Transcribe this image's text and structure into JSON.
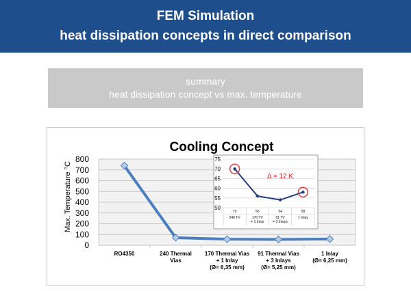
{
  "header": {
    "line1": "FEM Simulation",
    "line2": "heat dissipation concepts in direct comparison"
  },
  "summary": {
    "line1": "summary",
    "line2": "heat dissipation concept vs max. temperature"
  },
  "colors": {
    "header_bg": "#1f4e8c",
    "summary_bg": "#c9c9c9",
    "series_line": "#4a7ebf",
    "marker_fill": "#b8cce4",
    "inset_line": "#1f3a80",
    "delta_text": "#e02020",
    "highlight_circle": "#e04040"
  },
  "chart_data": [
    {
      "type": "line",
      "title": "Cooling Concept",
      "ylabel": "Max. Temperature  °C",
      "xlabel": "",
      "categories": [
        [
          "RO4350"
        ],
        [
          "240 Thermal",
          "Vias"
        ],
        [
          "170 Thermal Vias",
          "+ 1 Inlay",
          "(Ø= 6,35 mm)"
        ],
        [
          "91 Thermal Vias",
          "+ 3 Inlays",
          "(Ø= 5,25 mm)"
        ],
        [
          "1 Inlay",
          "(Ø= 6,25 mm)"
        ]
      ],
      "values": [
        740,
        70,
        56,
        54,
        58
      ],
      "ylim": [
        0,
        800
      ],
      "yticks": [
        0,
        100,
        200,
        300,
        400,
        500,
        600,
        700,
        800
      ],
      "grid": true,
      "legend": "none"
    },
    {
      "type": "line",
      "title": "",
      "annotation": "Δ = 12 K",
      "categories": [
        [
          "240 TV"
        ],
        [
          "170 TV",
          "+ 1 Inlay"
        ],
        [
          "91 TV",
          "+ 3 Inlays"
        ],
        [
          "1 Inlay"
        ]
      ],
      "data_labels": [
        "70",
        "56",
        "54",
        "58"
      ],
      "values": [
        70,
        56,
        54,
        58
      ],
      "ylim": [
        50,
        75
      ],
      "yticks": [
        50,
        55,
        60,
        65,
        70,
        75
      ],
      "highlighted_points": [
        0,
        3
      ],
      "grid": true,
      "legend": "none"
    }
  ]
}
